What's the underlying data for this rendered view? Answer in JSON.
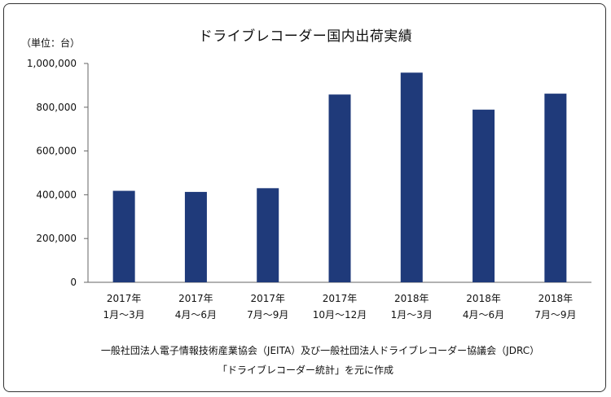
{
  "chart_data": {
    "type": "bar",
    "title": "ドライブレコーダー国内出荷実績",
    "unit_label": "（単位：台）",
    "categories": [
      {
        "year": "2017年",
        "period": "1月～3月"
      },
      {
        "year": "2017年",
        "period": "4月～6月"
      },
      {
        "year": "2017年",
        "period": "7月～9月"
      },
      {
        "year": "2017年",
        "period": "10月～12月"
      },
      {
        "year": "2018年",
        "period": "1月～3月"
      },
      {
        "year": "2018年",
        "period": "4月～6月"
      },
      {
        "year": "2018年",
        "period": "7月～9月"
      }
    ],
    "values": [
      418000,
      413000,
      430000,
      858000,
      958000,
      789000,
      862000
    ],
    "ylim": [
      0,
      1000000
    ],
    "yticks": [
      {
        "value": 0,
        "label": "0"
      },
      {
        "value": 200000,
        "label": "200,000"
      },
      {
        "value": 400000,
        "label": "400,000"
      },
      {
        "value": 600000,
        "label": "600,000"
      },
      {
        "value": 800000,
        "label": "800,000"
      },
      {
        "value": 1000000,
        "label": "1,000,000"
      }
    ],
    "grid": false,
    "colors": {
      "bar": "#1f3a7a",
      "axis": "#666666"
    }
  },
  "source_lines": [
    "一般社団法人電子情報技術産業協会（JEITA）及び一般社団法人ドライブレコーダー協議会（JDRC）",
    "「ドライブレコーダー統計」を元に作成"
  ]
}
